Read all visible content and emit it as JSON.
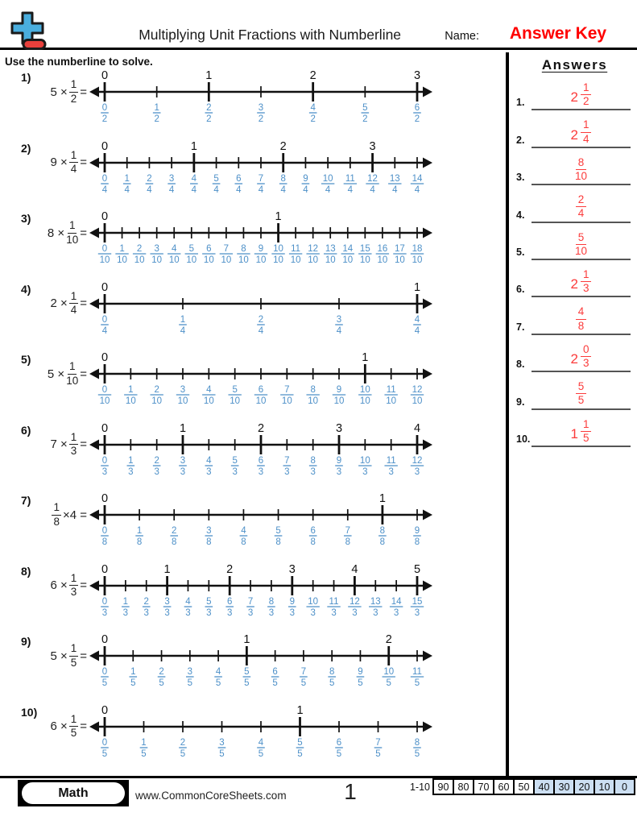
{
  "header": {
    "title": "Multiplying Unit Fractions with Numberline",
    "name_label": "Name:",
    "name_value": "Answer Key",
    "logo_icon": "plus-minus-logo"
  },
  "instruction": "Use the numberline to solve.",
  "colors": {
    "fraction_blue": "#4d90c8",
    "answer_red": "#fb3b3b",
    "answer_key_red": "#ff0000",
    "grade_highlight_blue": "#ccdff2",
    "line_black": "#111111",
    "logo_plus_blue": "#4aaede",
    "logo_minus_red": "#e8403c"
  },
  "problems": [
    {
      "label": "1)",
      "expr": {
        "prefix": "5 ×",
        "num": "1",
        "den": "2",
        "suffix": "="
      },
      "line": {
        "den": 2,
        "ticks": 7
      }
    },
    {
      "label": "2)",
      "expr": {
        "prefix": "9 ×",
        "num": "1",
        "den": "4",
        "suffix": "="
      },
      "line": {
        "den": 4,
        "ticks": 15
      }
    },
    {
      "label": "3)",
      "expr": {
        "prefix": "8 ×",
        "num": "1",
        "den": "10",
        "suffix": "="
      },
      "line": {
        "den": 10,
        "ticks": 19
      }
    },
    {
      "label": "4)",
      "expr": {
        "prefix": "2 ×",
        "num": "1",
        "den": "4",
        "suffix": "="
      },
      "line": {
        "den": 4,
        "ticks": 5
      }
    },
    {
      "label": "5)",
      "expr": {
        "prefix": "5 ×",
        "num": "1",
        "den": "10",
        "suffix": "="
      },
      "line": {
        "den": 10,
        "ticks": 13
      }
    },
    {
      "label": "6)",
      "expr": {
        "prefix": "7 ×",
        "num": "1",
        "den": "3",
        "suffix": "="
      },
      "line": {
        "den": 3,
        "ticks": 13
      }
    },
    {
      "label": "7)",
      "expr": {
        "prefix": "",
        "num": "1",
        "den": "8",
        "suffix": "×4 ="
      },
      "line": {
        "den": 8,
        "ticks": 10
      }
    },
    {
      "label": "8)",
      "expr": {
        "prefix": "6 ×",
        "num": "1",
        "den": "3",
        "suffix": "="
      },
      "line": {
        "den": 3,
        "ticks": 16
      }
    },
    {
      "label": "9)",
      "expr": {
        "prefix": "5 ×",
        "num": "1",
        "den": "5",
        "suffix": "="
      },
      "line": {
        "den": 5,
        "ticks": 12
      }
    },
    {
      "label": "10)",
      "expr": {
        "prefix": "6 ×",
        "num": "1",
        "den": "5",
        "suffix": "="
      },
      "line": {
        "den": 5,
        "ticks": 9
      }
    }
  ],
  "answers": {
    "heading": "Answers",
    "items": [
      {
        "n": "1.",
        "whole": "2",
        "num": "1",
        "den": "2"
      },
      {
        "n": "2.",
        "whole": "2",
        "num": "1",
        "den": "4"
      },
      {
        "n": "3.",
        "whole": "",
        "num": "8",
        "den": "10"
      },
      {
        "n": "4.",
        "whole": "",
        "num": "2",
        "den": "4"
      },
      {
        "n": "5.",
        "whole": "",
        "num": "5",
        "den": "10"
      },
      {
        "n": "6.",
        "whole": "2",
        "num": "1",
        "den": "3"
      },
      {
        "n": "7.",
        "whole": "",
        "num": "4",
        "den": "8"
      },
      {
        "n": "8.",
        "whole": "2",
        "num": "0",
        "den": "3"
      },
      {
        "n": "9.",
        "whole": "",
        "num": "5",
        "den": "5"
      },
      {
        "n": "10.",
        "whole": "1",
        "num": "1",
        "den": "5"
      }
    ]
  },
  "footer": {
    "subject": "Math",
    "site": "www.CommonCoreSheets.com",
    "page": "1",
    "grade_label": "1-10",
    "grades": [
      {
        "v": "90",
        "hl": false
      },
      {
        "v": "80",
        "hl": false
      },
      {
        "v": "70",
        "hl": false
      },
      {
        "v": "60",
        "hl": false
      },
      {
        "v": "50",
        "hl": false
      },
      {
        "v": "40",
        "hl": true
      },
      {
        "v": "30",
        "hl": true
      },
      {
        "v": "20",
        "hl": true
      },
      {
        "v": "10",
        "hl": true
      },
      {
        "v": "0",
        "hl": true
      }
    ]
  }
}
